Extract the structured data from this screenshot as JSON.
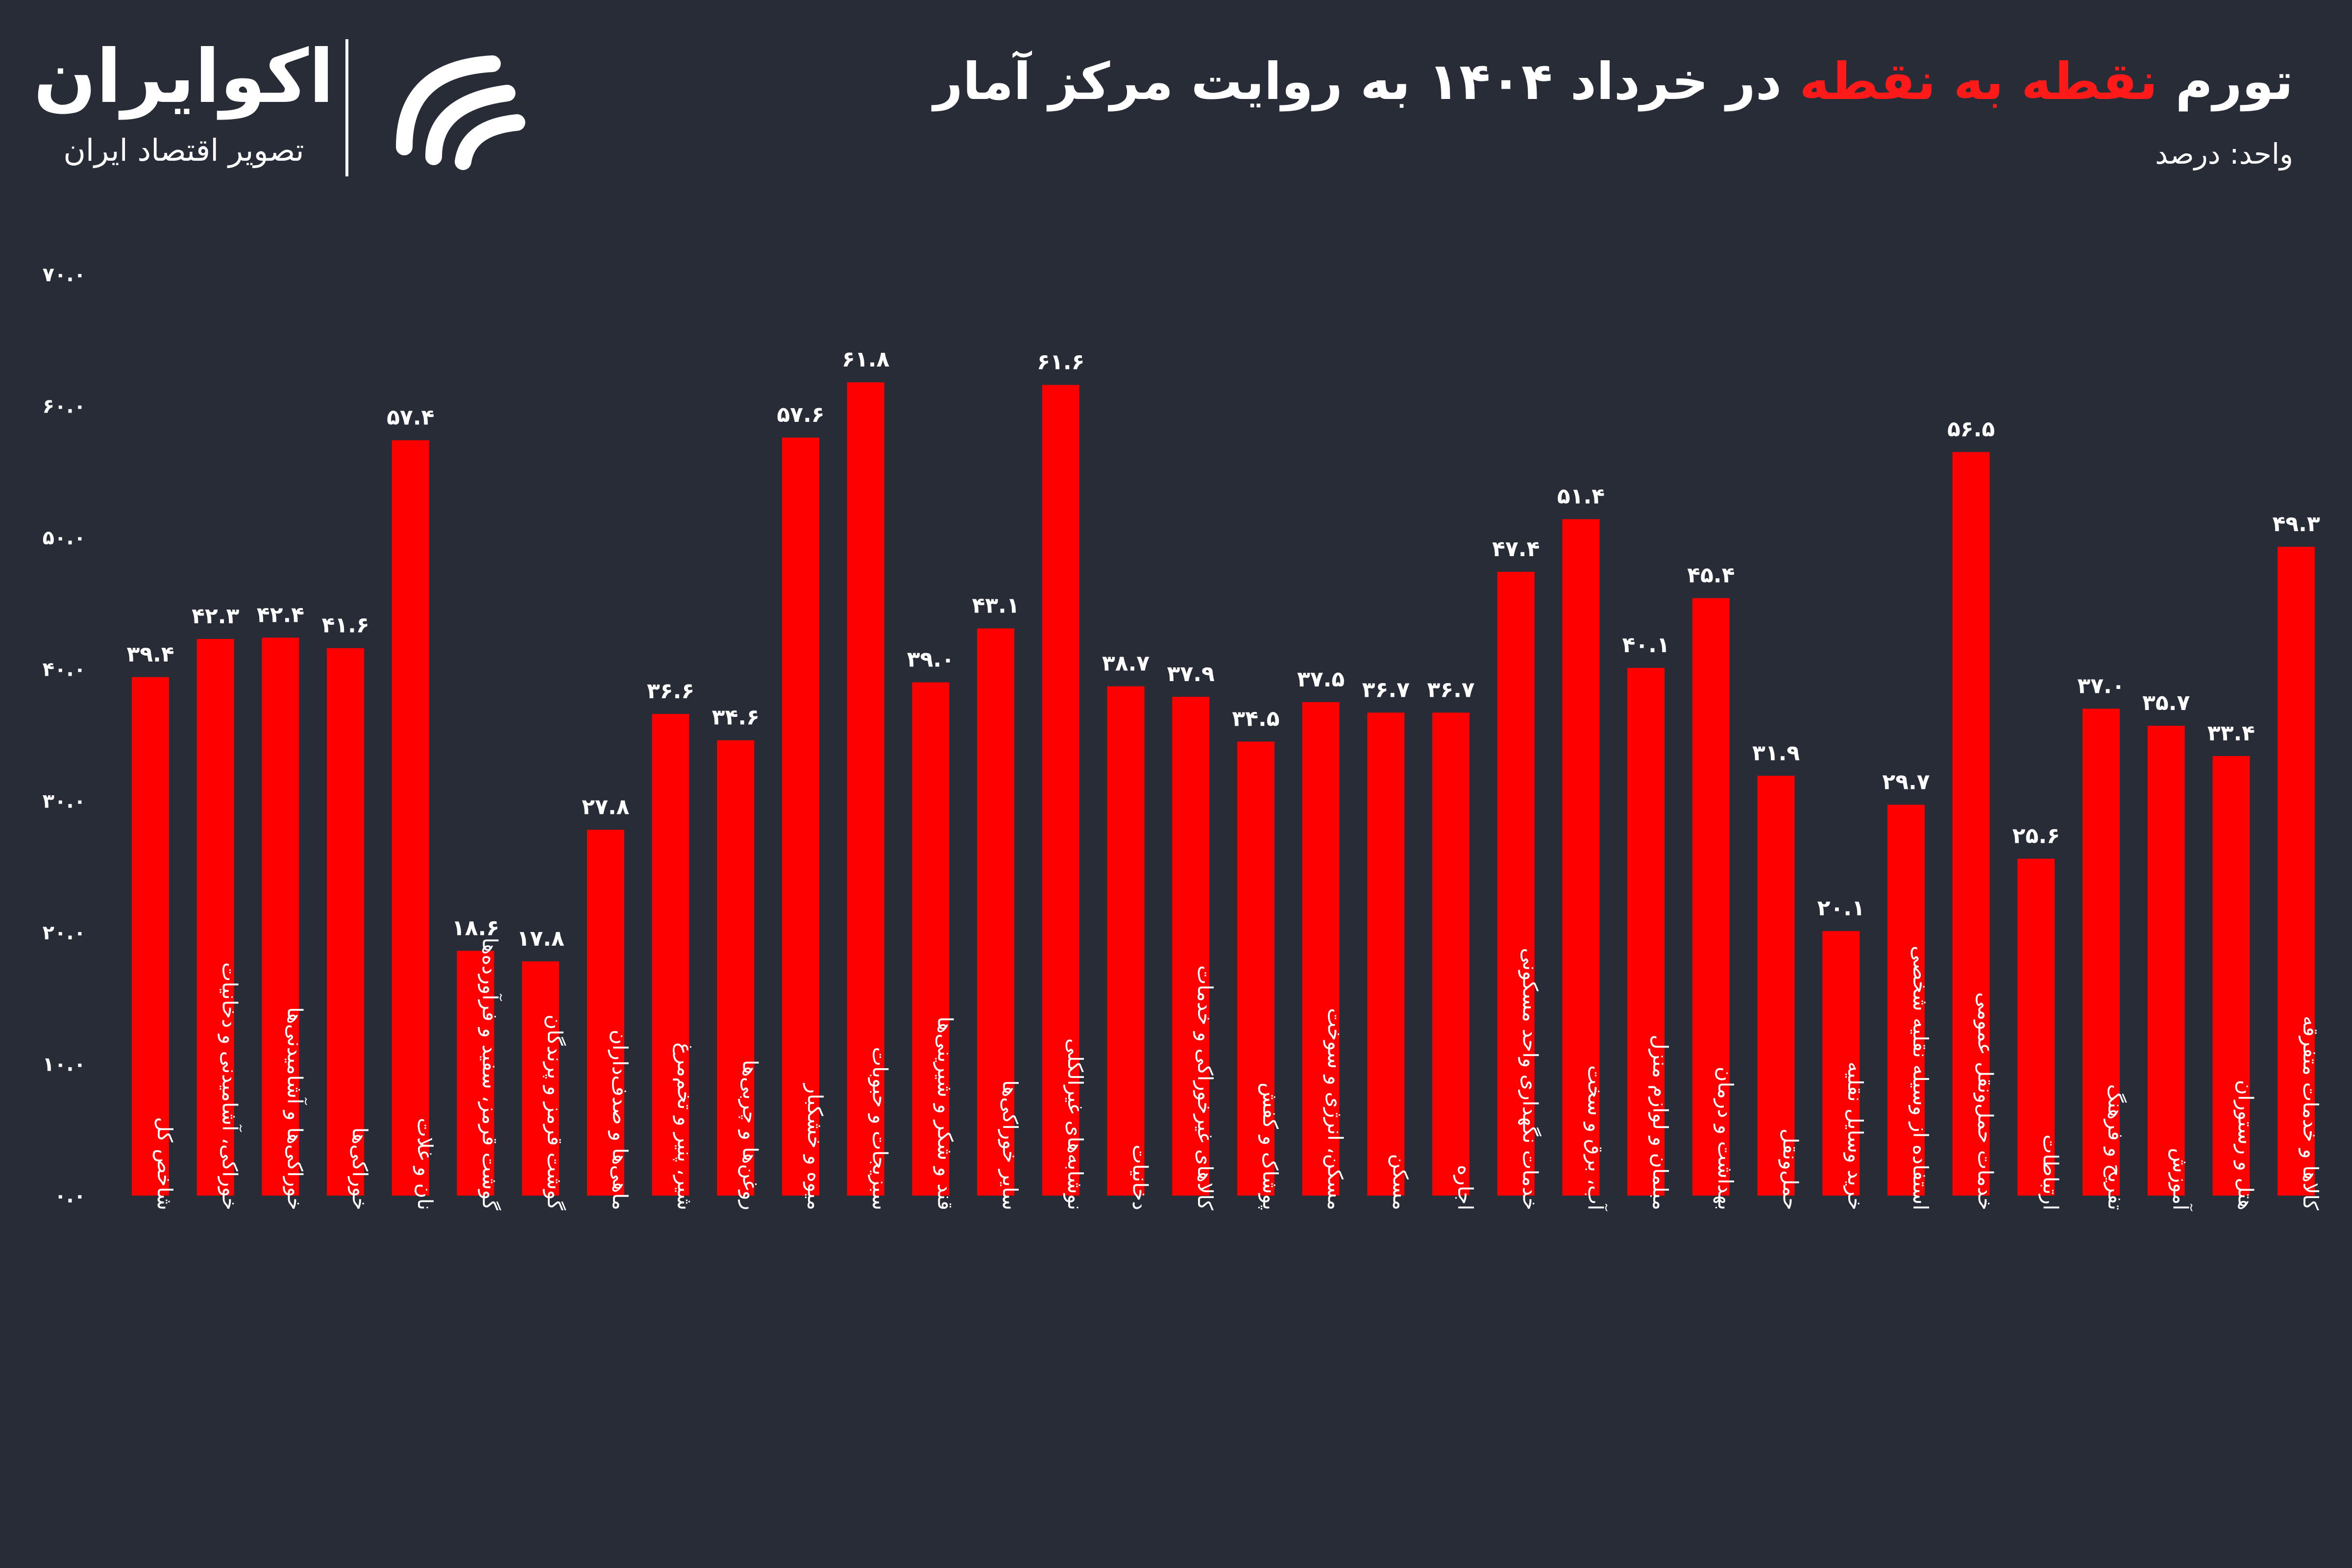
{
  "header": {
    "title_part1": "تورم",
    "title_highlight": "نقطه به نقطه",
    "title_part2": "در خرداد ۱۴۰۴ به روایت مرکز آمار",
    "unit": "واحد: درصد"
  },
  "logo": {
    "name": "اکوایران",
    "tagline": "تصویر اقتصاد ایران"
  },
  "colors": {
    "bar": "#ff0000",
    "background": "#272c36",
    "text": "#ffffff"
  },
  "chart_data": {
    "type": "bar",
    "title": "تورم نقطه به نقطه در خرداد ۱۴۰۴ به روایت مرکز آمار",
    "ylabel": "",
    "xlabel": "",
    "ylim": [
      0,
      70
    ],
    "y_ticks": [
      0,
      10,
      20,
      30,
      40,
      50,
      60,
      70
    ],
    "y_tick_labels": [
      "۰.۰",
      "۱۰.۰",
      "۲۰.۰",
      "۳۰.۰",
      "۴۰.۰",
      "۵۰.۰",
      "۶۰.۰",
      "۷۰.۰"
    ],
    "grid": false,
    "legend": "none",
    "categories": [
      "شاخص کل",
      "خوراکی، آشامیدنی و دخانیات",
      "خوراکی‌ها و آشامیدنی‌ها",
      "خوراکی‌ها",
      "نان و غلات",
      "گوشت قرمز، سفید و فرآورده‌ها",
      "گوشت قرمز و پرندگان",
      "ماهی‌ها و صدف‌داران",
      "شیر، پنیر و تخم‌مرغ",
      "روغن‌ها و چربی‌ها",
      "میوه و خشکبار",
      "سبزیجات و حبوبات",
      "قند و شکر و شیرینی‌ها",
      "سایر خوراکی‌ها",
      "نوشابه‌های غیرالکلی",
      "دخانیات",
      "کالاهای غیرخوراکی و خدمات",
      "پوشاک و کفش",
      "مسکن، انرژی و سوخت",
      "مسکن",
      "اجاره",
      "خدمات نگهداری واحد مسکونی",
      "آب، برق و سخت",
      "مبلمان و لوازم منزل",
      "بهداشت و درمان",
      "حمل‌ونقل",
      "خرید وسایل نقلیه",
      "استفاده از وسیله نقلیه شخصی",
      "خدمات حمل‌ونقل عمومی",
      "ارتباطات",
      "تفریح و فرهنگ",
      "آموزش",
      "هتل و رستوران",
      "کالاها و خدمات متفرقه"
    ],
    "values": [
      39.4,
      42.3,
      42.4,
      41.6,
      57.4,
      18.6,
      17.8,
      27.8,
      36.6,
      34.6,
      57.6,
      61.8,
      39.0,
      43.1,
      61.6,
      38.7,
      37.9,
      34.5,
      37.5,
      36.7,
      36.7,
      47.4,
      51.4,
      40.1,
      45.4,
      31.9,
      20.1,
      29.7,
      56.5,
      25.6,
      37.0,
      35.7,
      33.4,
      49.3
    ],
    "value_labels": [
      "۳۹.۴",
      "۴۲.۳",
      "۴۲.۴",
      "۴۱.۶",
      "۵۷.۴",
      "۱۸.۶",
      "۱۷.۸",
      "۲۷.۸",
      "۳۶.۶",
      "۳۴.۶",
      "۵۷.۶",
      "۶۱.۸",
      "۳۹.۰",
      "۴۳.۱",
      "۶۱.۶",
      "۳۸.۷",
      "۳۷.۹",
      "۳۴.۵",
      "۳۷.۵",
      "۳۶.۷",
      "۳۶.۷",
      "۴۷.۴",
      "۵۱.۴",
      "۴۰.۱",
      "۴۵.۴",
      "۳۱.۹",
      "۲۰.۱",
      "۲۹.۷",
      "۵۶.۵",
      "۲۵.۶",
      "۳۷.۰",
      "۳۵.۷",
      "۳۳.۴",
      "۴۹.۳"
    ]
  }
}
